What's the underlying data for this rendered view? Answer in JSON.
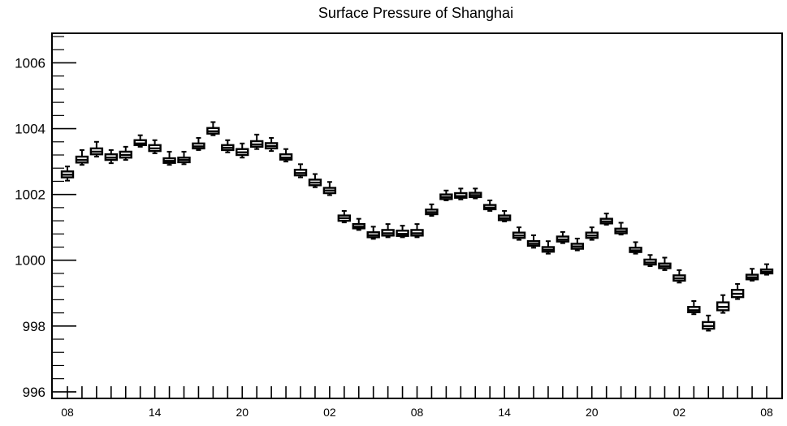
{
  "chart_data": {
    "type": "boxplot",
    "title": "Surface Pressure of Shanghai",
    "xlabel": "",
    "ylabel": "",
    "ylim": [
      995.8,
      1006.9
    ],
    "yticks": [
      "996",
      "998",
      "1000",
      "1002",
      "1004",
      "1006"
    ],
    "xtick_labels": [
      {
        "index": 0,
        "label": "08"
      },
      {
        "index": 6,
        "label": "14"
      },
      {
        "index": 12,
        "label": "20"
      },
      {
        "index": 18,
        "label": "02"
      },
      {
        "index": 24,
        "label": "08"
      },
      {
        "index": 30,
        "label": "14"
      },
      {
        "index": 36,
        "label": "20"
      },
      {
        "index": 42,
        "label": "02"
      },
      {
        "index": 48,
        "label": "08"
      }
    ],
    "grid": false,
    "series": [
      {
        "boxes": [
          {
            "min": 1002.42,
            "q1": 1002.52,
            "median": 1002.6,
            "q3": 1002.7,
            "max": 1002.85
          },
          {
            "min": 1002.9,
            "q1": 1002.97,
            "median": 1003.05,
            "q3": 1003.15,
            "max": 1003.35
          },
          {
            "min": 1003.15,
            "q1": 1003.22,
            "median": 1003.3,
            "q3": 1003.4,
            "max": 1003.6
          },
          {
            "min": 1002.95,
            "q1": 1003.05,
            "median": 1003.12,
            "q3": 1003.22,
            "max": 1003.35
          },
          {
            "min": 1003.05,
            "q1": 1003.12,
            "median": 1003.2,
            "q3": 1003.3,
            "max": 1003.45
          },
          {
            "min": 1003.45,
            "q1": 1003.5,
            "median": 1003.55,
            "q3": 1003.65,
            "max": 1003.8
          },
          {
            "min": 1003.25,
            "q1": 1003.32,
            "median": 1003.4,
            "q3": 1003.5,
            "max": 1003.65
          },
          {
            "min": 1002.9,
            "q1": 1002.96,
            "median": 1003.02,
            "q3": 1003.1,
            "max": 1003.3
          },
          {
            "min": 1002.92,
            "q1": 1002.98,
            "median": 1003.05,
            "q3": 1003.12,
            "max": 1003.3
          },
          {
            "min": 1003.35,
            "q1": 1003.4,
            "median": 1003.46,
            "q3": 1003.55,
            "max": 1003.72
          },
          {
            "min": 1003.8,
            "q1": 1003.85,
            "median": 1003.92,
            "q3": 1004.02,
            "max": 1004.2
          },
          {
            "min": 1003.28,
            "q1": 1003.35,
            "median": 1003.42,
            "q3": 1003.5,
            "max": 1003.65
          },
          {
            "min": 1003.12,
            "q1": 1003.2,
            "median": 1003.28,
            "q3": 1003.38,
            "max": 1003.55
          },
          {
            "min": 1003.38,
            "q1": 1003.45,
            "median": 1003.52,
            "q3": 1003.62,
            "max": 1003.82
          },
          {
            "min": 1003.32,
            "q1": 1003.4,
            "median": 1003.47,
            "q3": 1003.56,
            "max": 1003.72
          },
          {
            "min": 1003.0,
            "q1": 1003.06,
            "median": 1003.12,
            "q3": 1003.22,
            "max": 1003.38
          },
          {
            "min": 1002.52,
            "q1": 1002.58,
            "median": 1002.65,
            "q3": 1002.75,
            "max": 1002.92
          },
          {
            "min": 1002.22,
            "q1": 1002.28,
            "median": 1002.36,
            "q3": 1002.45,
            "max": 1002.62
          },
          {
            "min": 1001.98,
            "q1": 1002.04,
            "median": 1002.12,
            "q3": 1002.2,
            "max": 1002.38
          },
          {
            "min": 1001.15,
            "q1": 1001.2,
            "median": 1001.28,
            "q3": 1001.36,
            "max": 1001.5
          },
          {
            "min": 1000.92,
            "q1": 1000.97,
            "median": 1001.02,
            "q3": 1001.1,
            "max": 1001.26
          },
          {
            "min": 1000.65,
            "q1": 1000.7,
            "median": 1000.76,
            "q3": 1000.85,
            "max": 1001.02
          },
          {
            "min": 1000.7,
            "q1": 1000.75,
            "median": 1000.82,
            "q3": 1000.92,
            "max": 1001.1
          },
          {
            "min": 1000.7,
            "q1": 1000.74,
            "median": 1000.8,
            "q3": 1000.9,
            "max": 1001.05
          },
          {
            "min": 1000.7,
            "q1": 1000.75,
            "median": 1000.82,
            "q3": 1000.92,
            "max": 1001.1
          },
          {
            "min": 1001.35,
            "q1": 1001.4,
            "median": 1001.46,
            "q3": 1001.54,
            "max": 1001.7
          },
          {
            "min": 1001.82,
            "q1": 1001.86,
            "median": 1001.92,
            "q3": 1002.0,
            "max": 1002.12
          },
          {
            "min": 1001.85,
            "q1": 1001.9,
            "median": 1001.95,
            "q3": 1002.04,
            "max": 1002.18
          },
          {
            "min": 1001.88,
            "q1": 1001.92,
            "median": 1001.98,
            "q3": 1002.05,
            "max": 1002.18
          },
          {
            "min": 1001.5,
            "q1": 1001.55,
            "median": 1001.6,
            "q3": 1001.68,
            "max": 1001.82
          },
          {
            "min": 1001.18,
            "q1": 1001.22,
            "median": 1001.28,
            "q3": 1001.36,
            "max": 1001.5
          },
          {
            "min": 1000.62,
            "q1": 1000.68,
            "median": 1000.75,
            "q3": 1000.84,
            "max": 1001.0
          },
          {
            "min": 1000.38,
            "q1": 1000.44,
            "median": 1000.5,
            "q3": 1000.58,
            "max": 1000.76
          },
          {
            "min": 1000.2,
            "q1": 1000.26,
            "median": 1000.32,
            "q3": 1000.4,
            "max": 1000.58
          },
          {
            "min": 1000.52,
            "q1": 1000.57,
            "median": 1000.63,
            "q3": 1000.72,
            "max": 1000.86
          },
          {
            "min": 1000.3,
            "q1": 1000.35,
            "median": 1000.42,
            "q3": 1000.5,
            "max": 1000.66
          },
          {
            "min": 1000.62,
            "q1": 1000.68,
            "median": 1000.75,
            "q3": 1000.84,
            "max": 1001.0
          },
          {
            "min": 1001.08,
            "q1": 1001.12,
            "median": 1001.18,
            "q3": 1001.26,
            "max": 1001.42
          },
          {
            "min": 1000.78,
            "q1": 1000.82,
            "median": 1000.88,
            "q3": 1000.96,
            "max": 1001.14
          },
          {
            "min": 1000.2,
            "q1": 1000.25,
            "median": 1000.3,
            "q3": 1000.38,
            "max": 1000.55
          },
          {
            "min": 999.82,
            "q1": 999.87,
            "median": 999.93,
            "q3": 1000.02,
            "max": 1000.16
          },
          {
            "min": 999.7,
            "q1": 999.76,
            "median": 999.82,
            "q3": 999.9,
            "max": 1000.08
          },
          {
            "min": 999.32,
            "q1": 999.38,
            "median": 999.45,
            "q3": 999.54,
            "max": 999.7
          },
          {
            "min": 998.36,
            "q1": 998.42,
            "median": 998.48,
            "q3": 998.58,
            "max": 998.76
          },
          {
            "min": 997.86,
            "q1": 997.92,
            "median": 998.0,
            "q3": 998.12,
            "max": 998.32
          },
          {
            "min": 998.4,
            "q1": 998.48,
            "median": 998.58,
            "q3": 998.72,
            "max": 998.94
          },
          {
            "min": 998.82,
            "q1": 998.88,
            "median": 998.98,
            "q3": 999.1,
            "max": 999.28
          },
          {
            "min": 999.38,
            "q1": 999.42,
            "median": 999.48,
            "q3": 999.56,
            "max": 999.74
          },
          {
            "min": 999.56,
            "q1": 999.6,
            "median": 999.65,
            "q3": 999.72,
            "max": 999.88
          }
        ]
      }
    ]
  }
}
